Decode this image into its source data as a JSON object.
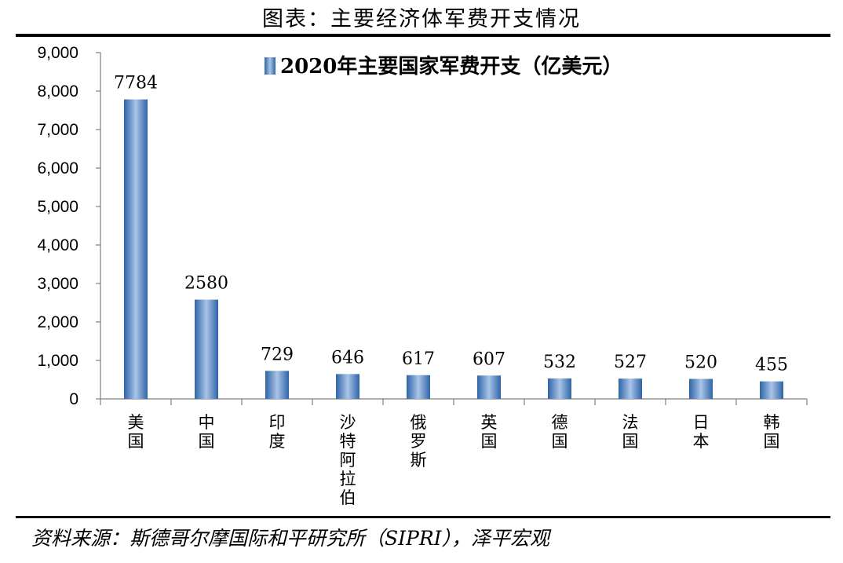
{
  "header": {
    "title": "图表：主要经济体军费开支情况"
  },
  "footer": {
    "source": "资料来源：斯德哥尔摩国际和平研究所（SIPRI），泽平宏观"
  },
  "chart_data": {
    "type": "bar",
    "legend": {
      "text": "2020年主要国家军费开支（亿美元）",
      "position": "top"
    },
    "categories": [
      "美国",
      "中国",
      "印度",
      "沙特阿拉伯",
      "俄罗斯",
      "英国",
      "德国",
      "法国",
      "日本",
      "韩国"
    ],
    "series": [
      {
        "name": "2020年主要国家军费开支（亿美元）",
        "values": [
          7784,
          2580,
          729,
          646,
          617,
          607,
          532,
          527,
          520,
          455
        ]
      }
    ],
    "y_ticks": [
      "0",
      "1,000",
      "2,000",
      "3,000",
      "4,000",
      "5,000",
      "6,000",
      "7,000",
      "8,000",
      "9,000"
    ],
    "ylim": [
      0,
      9000
    ],
    "grid": false,
    "colors": {
      "bar_dark": "#2f64a8",
      "bar_light": "#a9c4e6"
    }
  }
}
